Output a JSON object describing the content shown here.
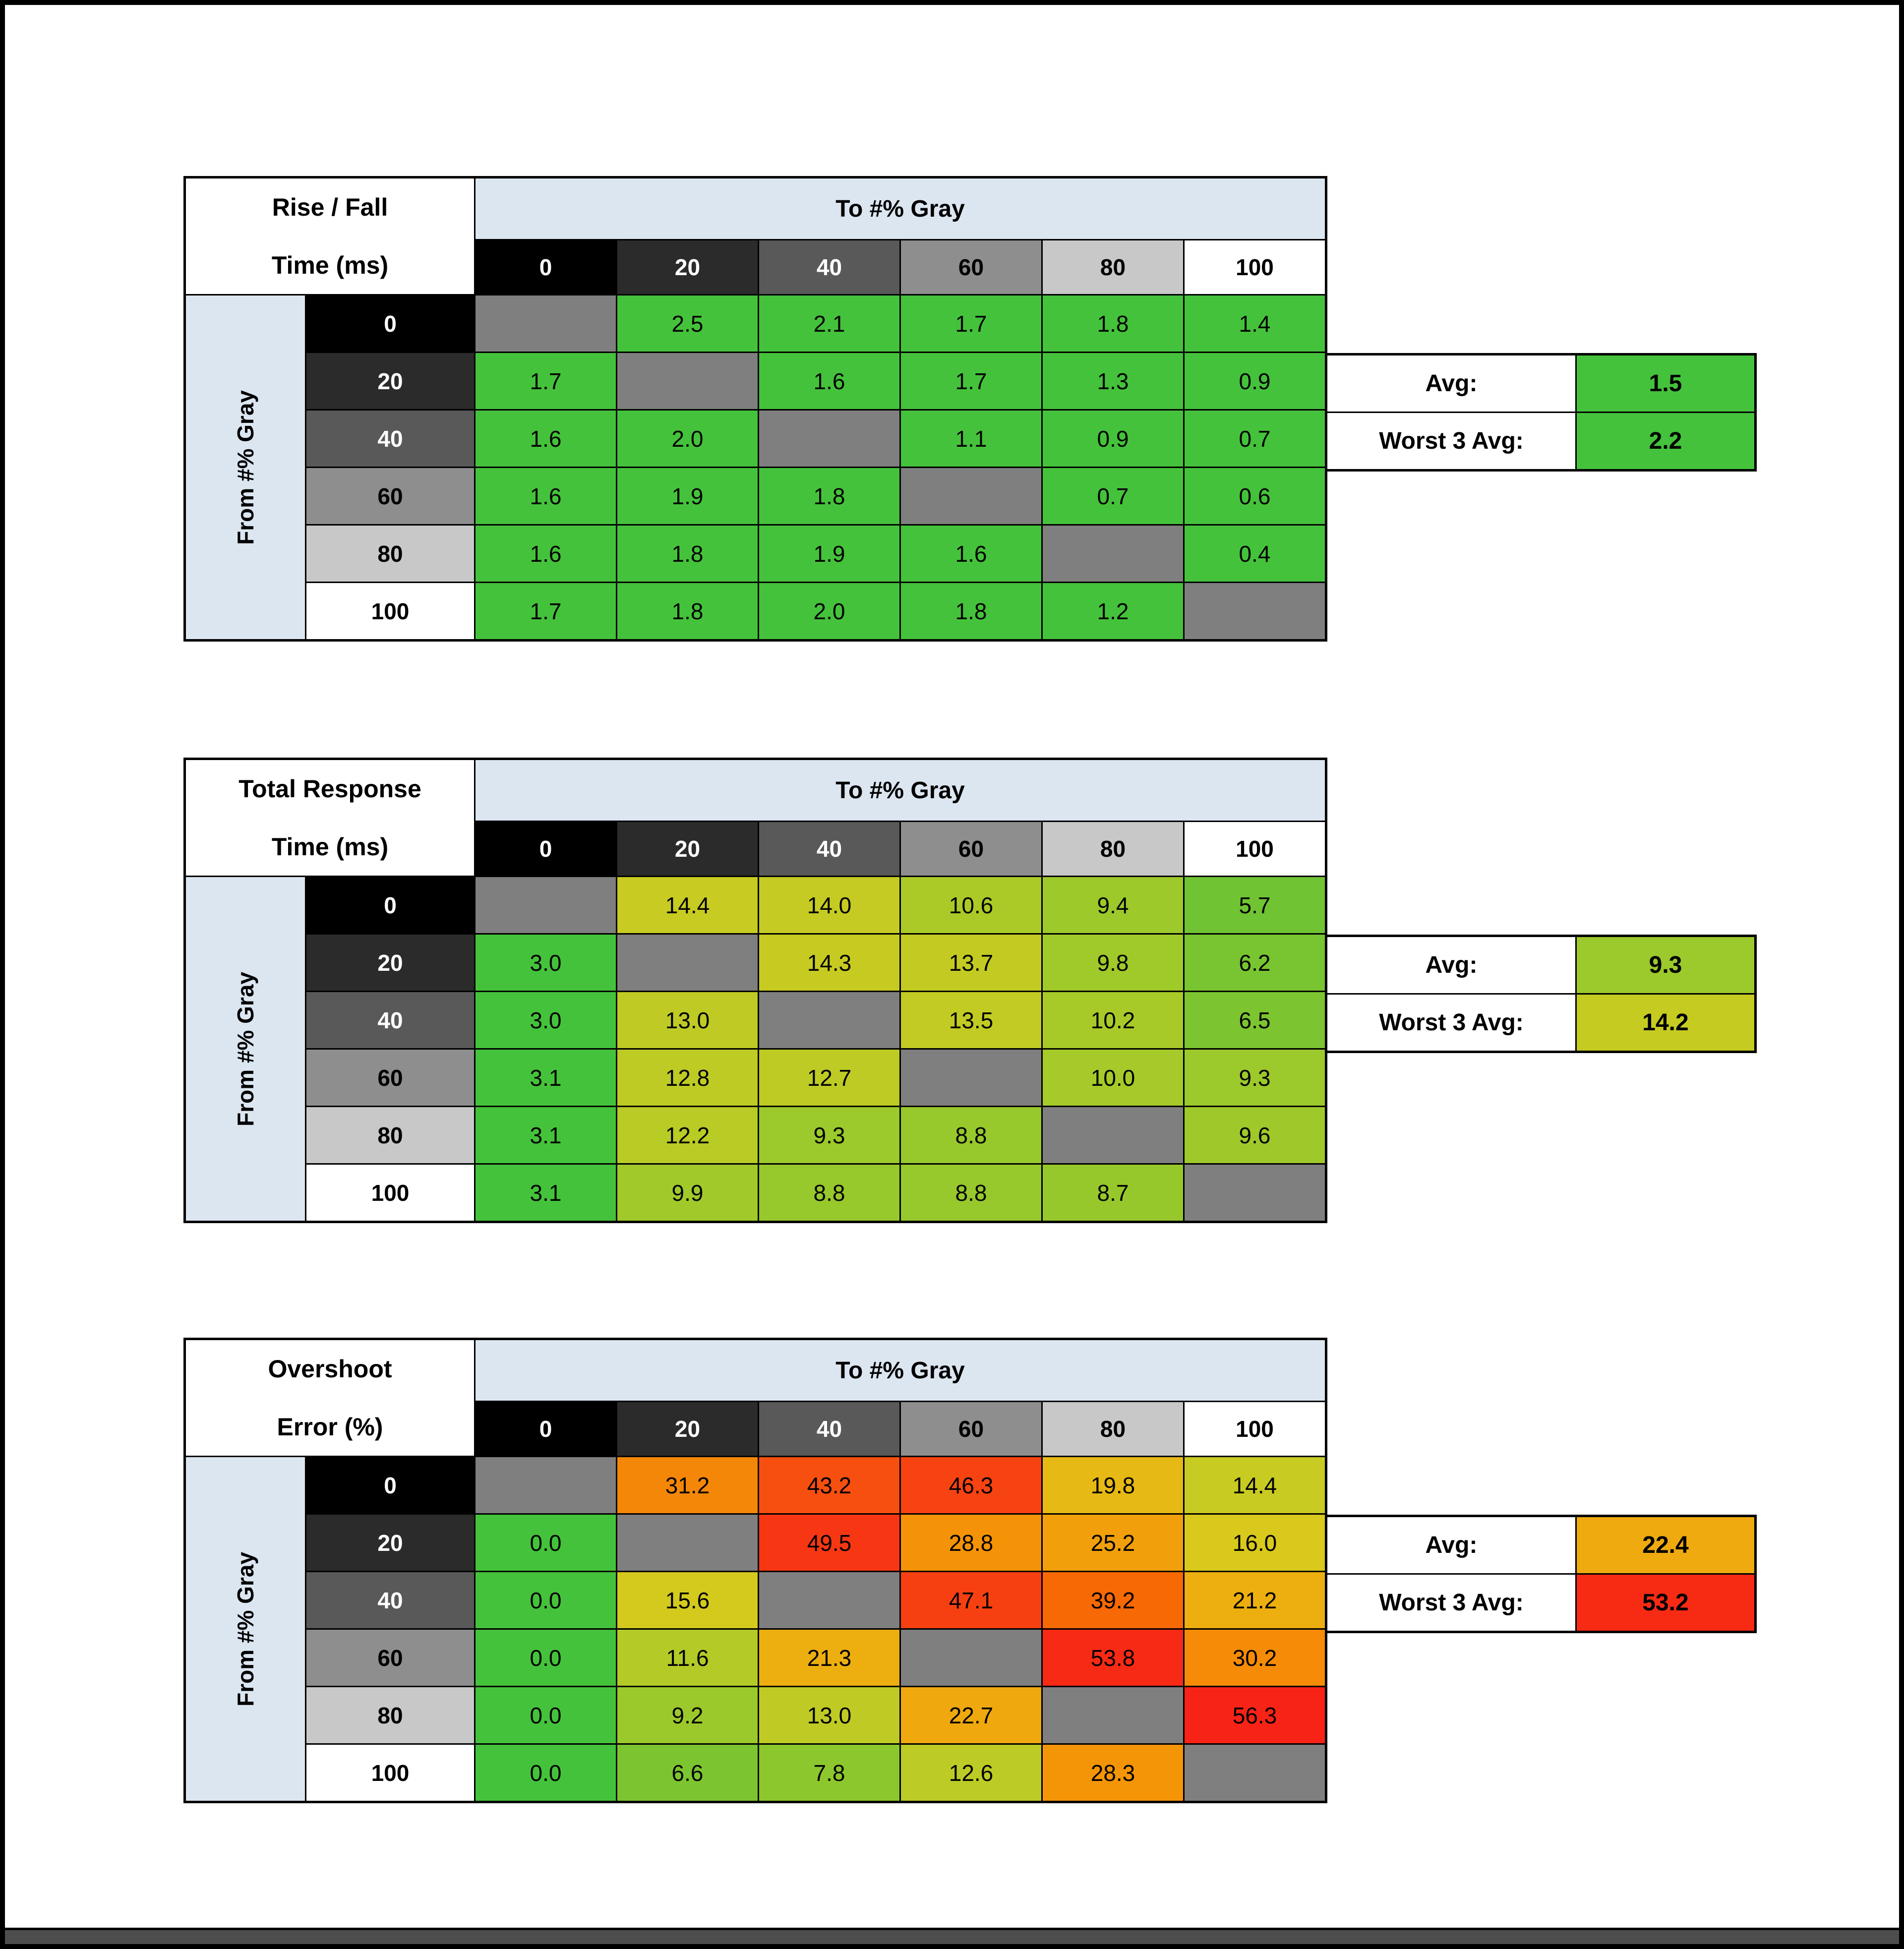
{
  "page": {
    "background": "#ffffff",
    "frame_color": "#000000",
    "bottom_bar_color": "#4d4d4d"
  },
  "shared": {
    "to_header": "To #% Gray",
    "from_header": "From #% Gray",
    "levels": [
      "0",
      "20",
      "40",
      "60",
      "80",
      "100"
    ],
    "level_bg": [
      "#000000",
      "#2b2b2b",
      "#595959",
      "#8e8e8e",
      "#c8c8c8",
      "#ffffff"
    ],
    "level_fg": [
      "#ffffff",
      "#ffffff",
      "#ffffff",
      "#000000",
      "#000000",
      "#000000"
    ],
    "diag_color": "#7f7f7f",
    "header_band_bg": "#dce6f1",
    "avg_label": "Avg:",
    "worst_label": "Worst 3 Avg:"
  },
  "tables": [
    {
      "title1": "Rise / Fall",
      "title2": "Time (ms)",
      "avg": {
        "value": "1.5",
        "color": "#45c23b"
      },
      "worst3": {
        "value": "2.2",
        "color": "#45c23b"
      },
      "cells": [
        [
          null,
          {
            "v": "2.5",
            "c": "#45c23b"
          },
          {
            "v": "2.1",
            "c": "#45c23b"
          },
          {
            "v": "1.7",
            "c": "#45c23b"
          },
          {
            "v": "1.8",
            "c": "#45c23b"
          },
          {
            "v": "1.4",
            "c": "#45c23b"
          }
        ],
        [
          {
            "v": "1.7",
            "c": "#45c23b"
          },
          null,
          {
            "v": "1.6",
            "c": "#45c23b"
          },
          {
            "v": "1.7",
            "c": "#45c23b"
          },
          {
            "v": "1.3",
            "c": "#45c23b"
          },
          {
            "v": "0.9",
            "c": "#45c23b"
          }
        ],
        [
          {
            "v": "1.6",
            "c": "#45c23b"
          },
          {
            "v": "2.0",
            "c": "#45c23b"
          },
          null,
          {
            "v": "1.1",
            "c": "#45c23b"
          },
          {
            "v": "0.9",
            "c": "#45c23b"
          },
          {
            "v": "0.7",
            "c": "#45c23b"
          }
        ],
        [
          {
            "v": "1.6",
            "c": "#45c23b"
          },
          {
            "v": "1.9",
            "c": "#45c23b"
          },
          {
            "v": "1.8",
            "c": "#45c23b"
          },
          null,
          {
            "v": "0.7",
            "c": "#45c23b"
          },
          {
            "v": "0.6",
            "c": "#45c23b"
          }
        ],
        [
          {
            "v": "1.6",
            "c": "#45c23b"
          },
          {
            "v": "1.8",
            "c": "#45c23b"
          },
          {
            "v": "1.9",
            "c": "#45c23b"
          },
          {
            "v": "1.6",
            "c": "#45c23b"
          },
          null,
          {
            "v": "0.4",
            "c": "#45c23b"
          }
        ],
        [
          {
            "v": "1.7",
            "c": "#45c23b"
          },
          {
            "v": "1.8",
            "c": "#45c23b"
          },
          {
            "v": "2.0",
            "c": "#45c23b"
          },
          {
            "v": "1.8",
            "c": "#45c23b"
          },
          {
            "v": "1.2",
            "c": "#45c23b"
          },
          null
        ]
      ]
    },
    {
      "title1": "Total Response",
      "title2": "Time (ms)",
      "avg": {
        "value": "9.3",
        "color": "#9cc92b"
      },
      "worst3": {
        "value": "14.2",
        "color": "#c6cb22"
      },
      "cells": [
        [
          null,
          {
            "v": "14.4",
            "c": "#c8cb21"
          },
          {
            "v": "14.0",
            "c": "#c5cb22"
          },
          {
            "v": "10.6",
            "c": "#abca28"
          },
          {
            "v": "9.4",
            "c": "#9dc92b"
          },
          {
            "v": "5.7",
            "c": "#70c433"
          }
        ],
        [
          {
            "v": "3.0",
            "c": "#45c23b"
          },
          null,
          {
            "v": "14.3",
            "c": "#c7cb21"
          },
          {
            "v": "13.7",
            "c": "#c3cb23"
          },
          {
            "v": "9.8",
            "c": "#a0c92a"
          },
          {
            "v": "6.2",
            "c": "#78c531"
          }
        ],
        [
          {
            "v": "3.0",
            "c": "#45c23b"
          },
          {
            "v": "13.0",
            "c": "#bfcb24"
          },
          null,
          {
            "v": "13.5",
            "c": "#c2cb23"
          },
          {
            "v": "10.2",
            "c": "#a7ca29"
          },
          {
            "v": "6.5",
            "c": "#7cc530"
          }
        ],
        [
          {
            "v": "3.1",
            "c": "#45c23b"
          },
          {
            "v": "12.8",
            "c": "#becb24"
          },
          {
            "v": "12.7",
            "c": "#bdcb24"
          },
          null,
          {
            "v": "10.0",
            "c": "#a5ca29"
          },
          {
            "v": "9.3",
            "c": "#9cc92b"
          }
        ],
        [
          {
            "v": "3.1",
            "c": "#45c23b"
          },
          {
            "v": "12.2",
            "c": "#b9cb25"
          },
          {
            "v": "9.3",
            "c": "#9cc92b"
          },
          {
            "v": "8.8",
            "c": "#97c82c"
          },
          null,
          {
            "v": "9.6",
            "c": "#9fc92a"
          }
        ],
        [
          {
            "v": "3.1",
            "c": "#45c23b"
          },
          {
            "v": "9.9",
            "c": "#a1c92a"
          },
          {
            "v": "8.8",
            "c": "#97c82c"
          },
          {
            "v": "8.8",
            "c": "#97c82c"
          },
          {
            "v": "8.7",
            "c": "#96c82c"
          },
          null
        ]
      ]
    },
    {
      "title1": "Overshoot",
      "title2": "Error (%)",
      "avg": {
        "value": "22.4",
        "color": "#eeaa0e"
      },
      "worst3": {
        "value": "53.2",
        "color": "#f72b14"
      },
      "cells": [
        [
          null,
          {
            "v": "31.2",
            "c": "#f58708"
          },
          {
            "v": "43.2",
            "c": "#f74f10"
          },
          {
            "v": "46.3",
            "c": "#f74312"
          },
          {
            "v": "19.8",
            "c": "#e7b914"
          },
          {
            "v": "14.4",
            "c": "#c8cb21"
          }
        ],
        [
          {
            "v": "0.0",
            "c": "#45c23b"
          },
          null,
          {
            "v": "49.5",
            "c": "#f73713"
          },
          {
            "v": "28.8",
            "c": "#f49308"
          },
          {
            "v": "25.2",
            "c": "#f1a00c"
          },
          {
            "v": "16.0",
            "c": "#d8c91c"
          }
        ],
        [
          {
            "v": "0.0",
            "c": "#45c23b"
          },
          {
            "v": "15.6",
            "c": "#d4ca1e"
          },
          null,
          {
            "v": "47.1",
            "c": "#f74012"
          },
          {
            "v": "39.2",
            "c": "#f66905"
          },
          {
            "v": "21.2",
            "c": "#edae10"
          }
        ],
        [
          {
            "v": "0.0",
            "c": "#45c23b"
          },
          {
            "v": "11.6",
            "c": "#b4ca26"
          },
          {
            "v": "21.3",
            "c": "#edae10"
          },
          null,
          {
            "v": "53.8",
            "c": "#f72a15"
          },
          {
            "v": "30.2",
            "c": "#f58b07"
          }
        ],
        [
          {
            "v": "0.0",
            "c": "#45c23b"
          },
          {
            "v": "9.2",
            "c": "#9bc92b"
          },
          {
            "v": "13.0",
            "c": "#bfcb24"
          },
          {
            "v": "22.7",
            "c": "#efa90e"
          },
          null,
          {
            "v": "56.3",
            "c": "#f72316"
          }
        ],
        [
          {
            "v": "0.0",
            "c": "#45c23b"
          },
          {
            "v": "6.6",
            "c": "#7cc530"
          },
          {
            "v": "7.8",
            "c": "#8cc72d"
          },
          {
            "v": "12.6",
            "c": "#bccb25"
          },
          {
            "v": "28.3",
            "c": "#f49508"
          },
          null
        ]
      ]
    }
  ],
  "chart_data": [
    {
      "type": "heatmap",
      "title": "Rise / Fall Time (ms)",
      "xlabel": "To #% Gray",
      "ylabel": "From #% Gray",
      "x": [
        0,
        20,
        40,
        60,
        80,
        100
      ],
      "y": [
        0,
        20,
        40,
        60,
        80,
        100
      ],
      "values": [
        [
          null,
          2.5,
          2.1,
          1.7,
          1.8,
          1.4
        ],
        [
          1.7,
          null,
          1.6,
          1.7,
          1.3,
          0.9
        ],
        [
          1.6,
          2.0,
          null,
          1.1,
          0.9,
          0.7
        ],
        [
          1.6,
          1.9,
          1.8,
          null,
          0.7,
          0.6
        ],
        [
          1.6,
          1.8,
          1.9,
          1.6,
          null,
          0.4
        ],
        [
          1.7,
          1.8,
          2.0,
          1.8,
          1.2,
          null
        ]
      ],
      "avg": 1.5,
      "worst_3_avg": 2.2
    },
    {
      "type": "heatmap",
      "title": "Total Response Time (ms)",
      "xlabel": "To #% Gray",
      "ylabel": "From #% Gray",
      "x": [
        0,
        20,
        40,
        60,
        80,
        100
      ],
      "y": [
        0,
        20,
        40,
        60,
        80,
        100
      ],
      "values": [
        [
          null,
          14.4,
          14.0,
          10.6,
          9.4,
          5.7
        ],
        [
          3.0,
          null,
          14.3,
          13.7,
          9.8,
          6.2
        ],
        [
          3.0,
          13.0,
          null,
          13.5,
          10.2,
          6.5
        ],
        [
          3.1,
          12.8,
          12.7,
          null,
          10.0,
          9.3
        ],
        [
          3.1,
          12.2,
          9.3,
          8.8,
          null,
          9.6
        ],
        [
          3.1,
          9.9,
          8.8,
          8.8,
          8.7,
          null
        ]
      ],
      "avg": 9.3,
      "worst_3_avg": 14.2
    },
    {
      "type": "heatmap",
      "title": "Overshoot Error (%)",
      "xlabel": "To #% Gray",
      "ylabel": "From #% Gray",
      "x": [
        0,
        20,
        40,
        60,
        80,
        100
      ],
      "y": [
        0,
        20,
        40,
        60,
        80,
        100
      ],
      "values": [
        [
          null,
          31.2,
          43.2,
          46.3,
          19.8,
          14.4
        ],
        [
          0.0,
          null,
          49.5,
          28.8,
          25.2,
          16.0
        ],
        [
          0.0,
          15.6,
          null,
          47.1,
          39.2,
          21.2
        ],
        [
          0.0,
          11.6,
          21.3,
          null,
          53.8,
          30.2
        ],
        [
          0.0,
          9.2,
          13.0,
          22.7,
          null,
          56.3
        ],
        [
          0.0,
          6.6,
          7.8,
          12.6,
          28.3,
          null
        ]
      ],
      "avg": 22.4,
      "worst_3_avg": 53.2
    }
  ]
}
